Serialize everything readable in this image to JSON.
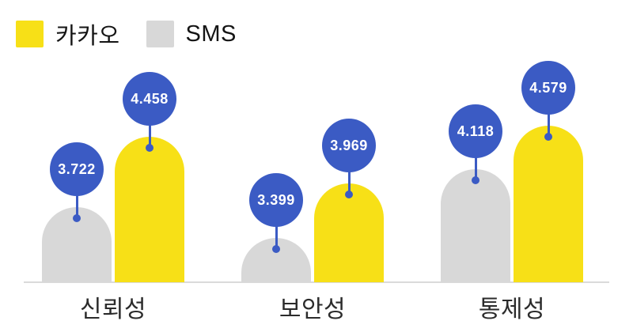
{
  "background": "#FFFFFF",
  "legend": {
    "items": [
      {
        "label": "카카오",
        "swatch": "#F7E017"
      },
      {
        "label": "SMS",
        "swatch": "#D8D8D8"
      }
    ]
  },
  "chart_data": {
    "type": "bar",
    "title": "",
    "categories": [
      "신뢰성",
      "보안성",
      "통제성"
    ],
    "series": [
      {
        "name": "SMS",
        "color": "#D8D8D8",
        "values": [
          3.722,
          3.399,
          4.118
        ],
        "labels": [
          "3.722",
          "3.399",
          "4.118"
        ]
      },
      {
        "name": "카카오",
        "color": "#F7E017",
        "values": [
          4.458,
          3.969,
          4.579
        ],
        "labels": [
          "4.458",
          "3.969",
          "4.579"
        ]
      }
    ],
    "marker": {
      "color": "#3B5BC4",
      "text_color": "#FFFFFF"
    },
    "baseline_color": "#DADADA",
    "ylim": [
      2.94,
      4.85
    ],
    "grid": false,
    "legend_position": "top-left",
    "xlabel": "",
    "ylabel": ""
  }
}
